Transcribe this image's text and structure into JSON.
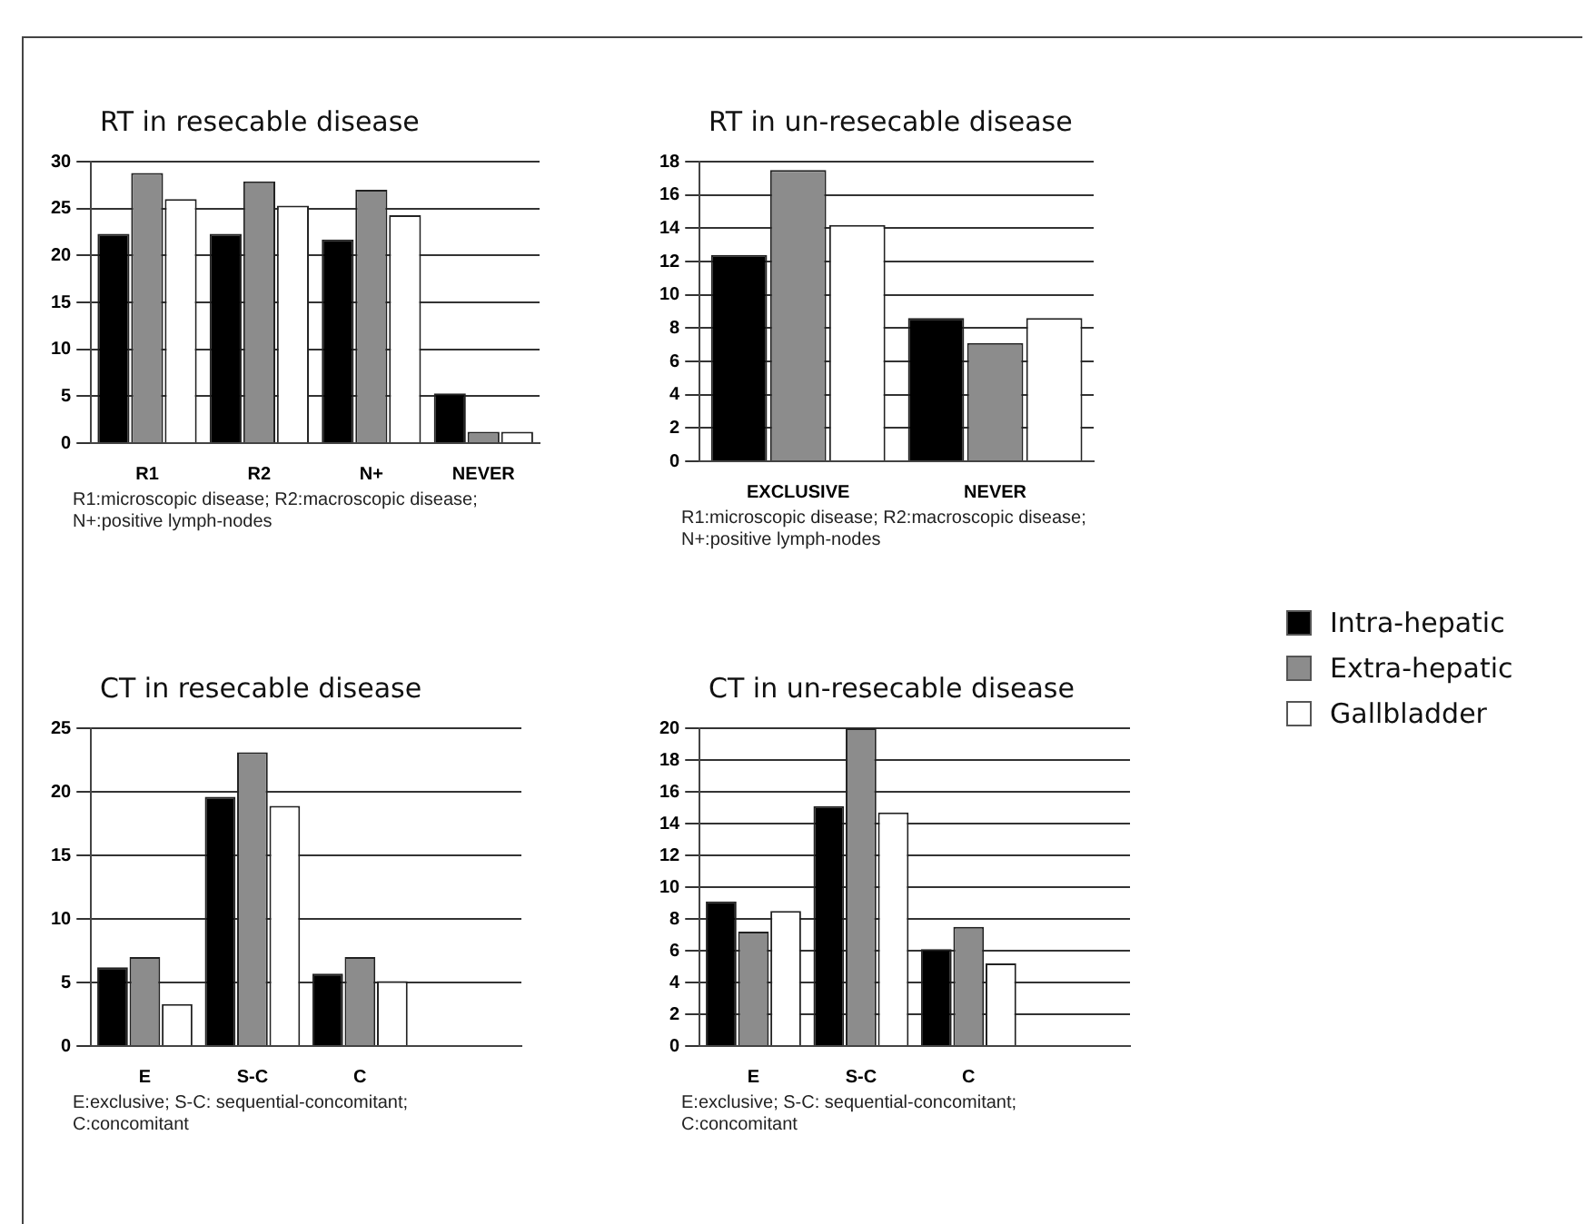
{
  "chart_data": [
    {
      "type": "bar",
      "title": "RT in resecable disease",
      "categories": [
        "R1",
        "R2",
        "N+",
        "NEVER"
      ],
      "series": [
        {
          "color": "#000000",
          "values": [
            22.3,
            22.3,
            21.7,
            5.3
          ]
        },
        {
          "color": "#8c8c8c",
          "values": [
            28.8,
            27.9,
            27,
            1.2
          ]
        },
        {
          "color": "#ffffff",
          "values": [
            26,
            25.3,
            24.3,
            1.2
          ]
        }
      ],
      "ylim": [
        0,
        30
      ],
      "yticks": [
        0,
        5,
        10,
        15,
        20,
        25,
        30
      ],
      "grid": "y",
      "legend": false,
      "annotations": [
        "R1:microscopic disease; R2:macroscopic disease; N+:positive lymph-nodes"
      ]
    },
    {
      "type": "bar",
      "title": "RT in un-resecable disease",
      "categories": [
        "EXCLUSIVE",
        "NEVER"
      ],
      "series": [
        {
          "name": "Intra-hepatic",
          "color": "#000000",
          "values": [
            12.4,
            8.6
          ]
        },
        {
          "name": "Extra-hepatic",
          "color": "#8c8c8c",
          "values": [
            17.5,
            7.1
          ]
        },
        {
          "name": "Gallbladder",
          "color": "#ffffff",
          "values": [
            14.2,
            8.6
          ]
        }
      ],
      "ylim": [
        0,
        18
      ],
      "yticks": [
        0,
        2,
        4,
        6,
        8,
        10,
        12,
        14,
        16,
        18
      ],
      "grid": "y",
      "legend": "right",
      "annotations": [
        "R1:microscopic disease; R2:macroscopic disease; N+:positive lymph-nodes"
      ]
    },
    {
      "type": "bar",
      "title": "CT in resecable disease",
      "categories": [
        "E",
        "S-C",
        "C",
        null
      ],
      "series": [
        {
          "color": "#000000",
          "values": [
            6.2,
            19.6,
            5.7,
            null
          ]
        },
        {
          "color": "#8c8c8c",
          "values": [
            7,
            23.1,
            7,
            null
          ]
        },
        {
          "color": "#ffffff",
          "values": [
            3.3,
            18.9,
            5.1,
            null
          ]
        }
      ],
      "ylim": [
        0,
        25
      ],
      "yticks": [
        0,
        5,
        10,
        15,
        20,
        25
      ],
      "grid": "y",
      "legend": false,
      "annotations": [
        "E:exclusive; S-C: sequential-concomitant; C:concomitant"
      ]
    },
    {
      "type": "bar",
      "title": "CT in un-resecable disease",
      "categories": [
        "E",
        "S-C",
        "C",
        null
      ],
      "series": [
        {
          "color": "#000000",
          "values": [
            9.1,
            15.1,
            6.1,
            null
          ]
        },
        {
          "color": "#8c8c8c",
          "values": [
            7.2,
            20,
            7.5,
            null
          ]
        },
        {
          "color": "#ffffff",
          "values": [
            8.5,
            14.7,
            5.2,
            null
          ]
        }
      ],
      "ylim": [
        0,
        20
      ],
      "yticks": [
        0,
        2,
        4,
        6,
        8,
        10,
        12,
        14,
        16,
        18,
        20
      ],
      "grid": "y",
      "legend": false,
      "annotations": [
        "E:exclusive; S-C: sequential-concomitant; C:concomitant"
      ]
    }
  ]
}
